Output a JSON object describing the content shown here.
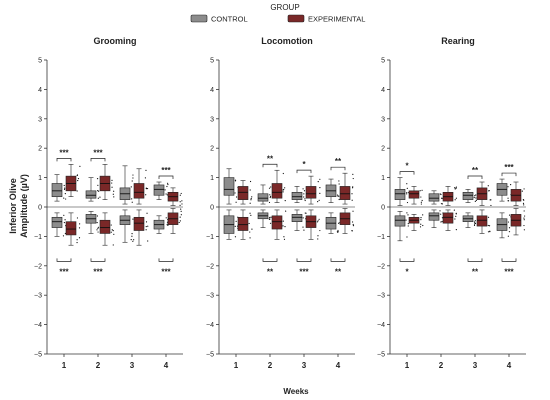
{
  "chart_data": {
    "type": "boxplot",
    "legend": {
      "title": "GROUP",
      "position": "top-center",
      "entries": [
        {
          "name": "CONTROL",
          "color": "#8c8c8c"
        },
        {
          "name": "EXPERIMENTAL",
          "color": "#7a2828"
        }
      ]
    },
    "ylabel": "Inferior Olive\nAmplitude (µV)",
    "xlabel": "Weeks",
    "ylim": [
      -5,
      5
    ],
    "yticks": [
      -5,
      -4,
      -3,
      -2,
      -1,
      0,
      1,
      2,
      3,
      4,
      5
    ],
    "categories": [
      "1",
      "2",
      "3",
      "4"
    ],
    "grid": false,
    "panels": [
      {
        "title": "Grooming",
        "boxes": [
          {
            "week": "1",
            "group": "CONTROL",
            "polarity": "pos",
            "min": 0.2,
            "q1": 0.35,
            "median": 0.55,
            "q3": 0.8,
            "max": 1.1
          },
          {
            "week": "1",
            "group": "EXPERIMENTAL",
            "polarity": "pos",
            "min": 0.35,
            "q1": 0.55,
            "median": 0.8,
            "q3": 1.05,
            "max": 1.45
          },
          {
            "week": "2",
            "group": "CONTROL",
            "polarity": "pos",
            "min": 0.2,
            "q1": 0.3,
            "median": 0.4,
            "q3": 0.55,
            "max": 1.0
          },
          {
            "week": "2",
            "group": "EXPERIMENTAL",
            "polarity": "pos",
            "min": 0.25,
            "q1": 0.55,
            "median": 0.8,
            "q3": 1.05,
            "max": 1.45
          },
          {
            "week": "3",
            "group": "CONTROL",
            "polarity": "pos",
            "min": 0.1,
            "q1": 0.25,
            "median": 0.45,
            "q3": 0.65,
            "max": 1.4
          },
          {
            "week": "3",
            "group": "EXPERIMENTAL",
            "polarity": "pos",
            "min": 0.1,
            "q1": 0.3,
            "median": 0.5,
            "q3": 0.8,
            "max": 1.3
          },
          {
            "week": "4",
            "group": "CONTROL",
            "polarity": "pos",
            "min": 0.25,
            "q1": 0.4,
            "median": 0.6,
            "q3": 0.75,
            "max": 0.85
          },
          {
            "week": "4",
            "group": "EXPERIMENTAL",
            "polarity": "pos",
            "min": 0.05,
            "q1": 0.2,
            "median": 0.35,
            "q3": 0.5,
            "max": 0.65
          },
          {
            "week": "1",
            "group": "CONTROL",
            "polarity": "neg",
            "min": -1.0,
            "q1": -0.7,
            "median": -0.5,
            "q3": -0.35,
            "max": -0.2
          },
          {
            "week": "1",
            "group": "EXPERIMENTAL",
            "polarity": "neg",
            "min": -1.3,
            "q1": -0.95,
            "median": -0.75,
            "q3": -0.5,
            "max": -0.2
          },
          {
            "week": "2",
            "group": "CONTROL",
            "polarity": "neg",
            "min": -0.9,
            "q1": -0.55,
            "median": -0.4,
            "q3": -0.25,
            "max": -0.15
          },
          {
            "week": "2",
            "group": "EXPERIMENTAL",
            "polarity": "neg",
            "min": -1.3,
            "q1": -0.9,
            "median": -0.7,
            "q3": -0.45,
            "max": -0.2
          },
          {
            "week": "3",
            "group": "CONTROL",
            "polarity": "neg",
            "min": -1.2,
            "q1": -0.6,
            "median": -0.45,
            "q3": -0.3,
            "max": -0.1
          },
          {
            "week": "3",
            "group": "EXPERIMENTAL",
            "polarity": "neg",
            "min": -1.3,
            "q1": -0.8,
            "median": -0.55,
            "q3": -0.35,
            "max": -0.1
          },
          {
            "week": "4",
            "group": "CONTROL",
            "polarity": "neg",
            "min": -0.9,
            "q1": -0.75,
            "median": -0.6,
            "q3": -0.45,
            "max": -0.3
          },
          {
            "week": "4",
            "group": "EXPERIMENTAL",
            "polarity": "neg",
            "min": -0.9,
            "q1": -0.6,
            "median": -0.4,
            "q3": -0.2,
            "max": -0.05
          }
        ],
        "significance": [
          {
            "week": "1",
            "polarity": "pos",
            "label": "***"
          },
          {
            "week": "2",
            "polarity": "pos",
            "label": "***"
          },
          {
            "week": "4",
            "polarity": "pos",
            "label": "***"
          },
          {
            "week": "1",
            "polarity": "neg",
            "label": "***"
          },
          {
            "week": "2",
            "polarity": "neg",
            "label": "***"
          },
          {
            "week": "4",
            "polarity": "neg",
            "label": "***"
          }
        ]
      },
      {
        "title": "Locomotion",
        "boxes": [
          {
            "week": "1",
            "group": "CONTROL",
            "polarity": "pos",
            "min": 0.1,
            "q1": 0.4,
            "median": 0.6,
            "q3": 1.0,
            "max": 1.3
          },
          {
            "week": "1",
            "group": "EXPERIMENTAL",
            "polarity": "pos",
            "min": 0.1,
            "q1": 0.25,
            "median": 0.5,
            "q3": 0.7,
            "max": 0.9
          },
          {
            "week": "2",
            "group": "CONTROL",
            "polarity": "pos",
            "min": 0.1,
            "q1": 0.2,
            "median": 0.3,
            "q3": 0.45,
            "max": 0.75
          },
          {
            "week": "2",
            "group": "EXPERIMENTAL",
            "polarity": "pos",
            "min": 0.15,
            "q1": 0.3,
            "median": 0.5,
            "q3": 0.8,
            "max": 1.25
          },
          {
            "week": "3",
            "group": "CONTROL",
            "polarity": "pos",
            "min": 0.15,
            "q1": 0.25,
            "median": 0.35,
            "q3": 0.5,
            "max": 0.7
          },
          {
            "week": "3",
            "group": "EXPERIMENTAL",
            "polarity": "pos",
            "min": 0.1,
            "q1": 0.3,
            "median": 0.45,
            "q3": 0.7,
            "max": 1.05
          },
          {
            "week": "4",
            "group": "CONTROL",
            "polarity": "pos",
            "min": 0.15,
            "q1": 0.35,
            "median": 0.55,
            "q3": 0.75,
            "max": 0.95
          },
          {
            "week": "4",
            "group": "EXPERIMENTAL",
            "polarity": "pos",
            "min": 0.1,
            "q1": 0.25,
            "median": 0.45,
            "q3": 0.7,
            "max": 1.15
          },
          {
            "week": "1",
            "group": "CONTROL",
            "polarity": "neg",
            "min": -1.1,
            "q1": -0.9,
            "median": -0.6,
            "q3": -0.3,
            "max": -0.1
          },
          {
            "week": "1",
            "group": "EXPERIMENTAL",
            "polarity": "neg",
            "min": -1.1,
            "q1": -0.8,
            "median": -0.6,
            "q3": -0.35,
            "max": -0.1
          },
          {
            "week": "2",
            "group": "CONTROL",
            "polarity": "neg",
            "min": -0.7,
            "q1": -0.4,
            "median": -0.3,
            "q3": -0.2,
            "max": -0.1
          },
          {
            "week": "2",
            "group": "EXPERIMENTAL",
            "polarity": "neg",
            "min": -1.1,
            "q1": -0.75,
            "median": -0.5,
            "q3": -0.3,
            "max": -0.1
          },
          {
            "week": "3",
            "group": "CONTROL",
            "polarity": "neg",
            "min": -0.8,
            "q1": -0.5,
            "median": -0.35,
            "q3": -0.25,
            "max": -0.1
          },
          {
            "week": "3",
            "group": "EXPERIMENTAL",
            "polarity": "neg",
            "min": -1.1,
            "q1": -0.7,
            "median": -0.5,
            "q3": -0.3,
            "max": -0.1
          },
          {
            "week": "4",
            "group": "CONTROL",
            "polarity": "neg",
            "min": -0.9,
            "q1": -0.75,
            "median": -0.55,
            "q3": -0.35,
            "max": -0.2
          },
          {
            "week": "4",
            "group": "EXPERIMENTAL",
            "polarity": "neg",
            "min": -0.9,
            "q1": -0.6,
            "median": -0.4,
            "q3": -0.2,
            "max": -0.05
          }
        ],
        "significance": [
          {
            "week": "2",
            "polarity": "pos",
            "label": "**"
          },
          {
            "week": "3",
            "polarity": "pos",
            "label": "*"
          },
          {
            "week": "4",
            "polarity": "pos",
            "label": "**"
          },
          {
            "week": "2",
            "polarity": "neg",
            "label": "**"
          },
          {
            "week": "3",
            "polarity": "neg",
            "label": "***"
          },
          {
            "week": "4",
            "polarity": "neg",
            "label": "**"
          }
        ]
      },
      {
        "title": "Rearing",
        "boxes": [
          {
            "week": "1",
            "group": "CONTROL",
            "polarity": "pos",
            "min": 0.05,
            "q1": 0.25,
            "median": 0.45,
            "q3": 0.6,
            "max": 1.0
          },
          {
            "week": "1",
            "group": "EXPERIMENTAL",
            "polarity": "pos",
            "min": 0.1,
            "q1": 0.3,
            "median": 0.45,
            "q3": 0.55,
            "max": 0.7
          },
          {
            "week": "2",
            "group": "CONTROL",
            "polarity": "pos",
            "min": 0.1,
            "q1": 0.2,
            "median": 0.3,
            "q3": 0.45,
            "max": 0.55
          },
          {
            "week": "2",
            "group": "EXPERIMENTAL",
            "polarity": "pos",
            "min": 0.05,
            "q1": 0.2,
            "median": 0.35,
            "q3": 0.5,
            "max": 0.7
          },
          {
            "week": "3",
            "group": "CONTROL",
            "polarity": "pos",
            "min": 0.15,
            "q1": 0.25,
            "median": 0.4,
            "q3": 0.5,
            "max": 0.6
          },
          {
            "week": "3",
            "group": "EXPERIMENTAL",
            "polarity": "pos",
            "min": 0.05,
            "q1": 0.25,
            "median": 0.45,
            "q3": 0.65,
            "max": 0.85
          },
          {
            "week": "4",
            "group": "CONTROL",
            "polarity": "pos",
            "min": 0.2,
            "q1": 0.4,
            "median": 0.6,
            "q3": 0.8,
            "max": 0.95
          },
          {
            "week": "4",
            "group": "EXPERIMENTAL",
            "polarity": "pos",
            "min": 0.05,
            "q1": 0.2,
            "median": 0.4,
            "q3": 0.6,
            "max": 0.85
          },
          {
            "week": "1",
            "group": "CONTROL",
            "polarity": "neg",
            "min": -1.15,
            "q1": -0.65,
            "median": -0.45,
            "q3": -0.3,
            "max": -0.15
          },
          {
            "week": "1",
            "group": "EXPERIMENTAL",
            "polarity": "neg",
            "min": -0.8,
            "q1": -0.55,
            "median": -0.45,
            "q3": -0.35,
            "max": -0.25
          },
          {
            "week": "2",
            "group": "CONTROL",
            "polarity": "neg",
            "min": -0.7,
            "q1": -0.45,
            "median": -0.3,
            "q3": -0.2,
            "max": -0.1
          },
          {
            "week": "2",
            "group": "EXPERIMENTAL",
            "polarity": "neg",
            "min": -0.8,
            "q1": -0.55,
            "median": -0.35,
            "q3": -0.2,
            "max": -0.1
          },
          {
            "week": "3",
            "group": "CONTROL",
            "polarity": "neg",
            "min": -0.7,
            "q1": -0.5,
            "median": -0.4,
            "q3": -0.3,
            "max": -0.2
          },
          {
            "week": "3",
            "group": "EXPERIMENTAL",
            "polarity": "neg",
            "min": -0.9,
            "q1": -0.65,
            "median": -0.45,
            "q3": -0.3,
            "max": -0.1
          },
          {
            "week": "4",
            "group": "CONTROL",
            "polarity": "neg",
            "min": -1.05,
            "q1": -0.8,
            "median": -0.6,
            "q3": -0.4,
            "max": -0.2
          },
          {
            "week": "4",
            "group": "EXPERIMENTAL",
            "polarity": "neg",
            "min": -0.95,
            "q1": -0.65,
            "median": -0.45,
            "q3": -0.25,
            "max": -0.05
          }
        ],
        "significance": [
          {
            "week": "1",
            "polarity": "pos",
            "label": "*"
          },
          {
            "week": "3",
            "polarity": "pos",
            "label": "**"
          },
          {
            "week": "4",
            "polarity": "pos",
            "label": "***"
          },
          {
            "week": "1",
            "polarity": "neg",
            "label": "*"
          },
          {
            "week": "3",
            "polarity": "neg",
            "label": "**"
          },
          {
            "week": "4",
            "polarity": "neg",
            "label": "***"
          }
        ]
      }
    ]
  }
}
